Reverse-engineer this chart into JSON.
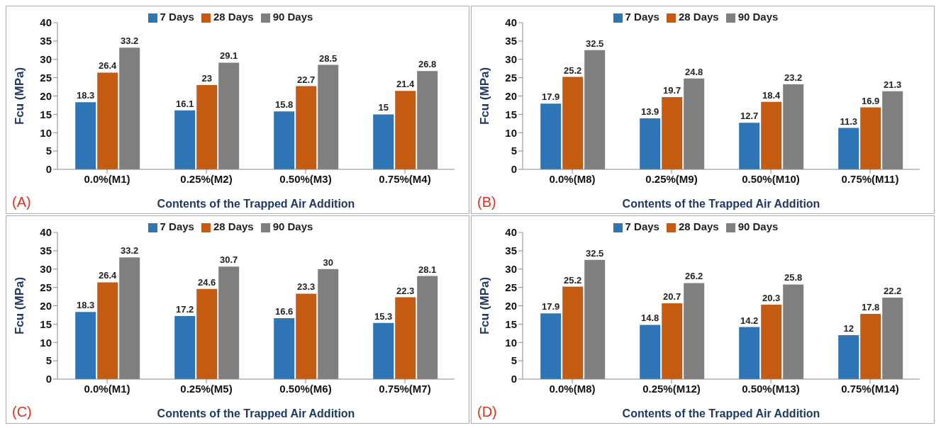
{
  "chart_data": [
    {
      "type": "bar",
      "categories": [
        "0.0%(M1)",
        "0.25%(M2)",
        "0.50%(M3)",
        "0.75%(M4)"
      ],
      "xlabel": "Contents of the Trapped Air Addition",
      "ylabel": "Fcu  (MPa)",
      "ylim": [
        0,
        40
      ],
      "yticks": [
        0,
        5,
        10,
        15,
        20,
        25,
        30,
        35,
        40
      ],
      "legend": "top",
      "data_labels": true,
      "annotations": [
        "(A)"
      ],
      "series": [
        {
          "name": "7 Days",
          "color": "#2e75b6",
          "values": [
            18.3,
            16.1,
            15.8,
            15
          ]
        },
        {
          "name": "28 Days",
          "color": "#c55a11",
          "values": [
            26.4,
            23,
            22.7,
            21.4
          ]
        },
        {
          "name": "90 Days",
          "color": "#7f7f7f",
          "values": [
            33.2,
            29.1,
            28.5,
            26.8
          ]
        }
      ]
    },
    {
      "type": "bar",
      "categories": [
        "0.0%(M8)",
        "0.25%(M9)",
        "0.50%(M10)",
        "0.75%(M11)"
      ],
      "xlabel": "Contents of the Trapped Air Addition",
      "ylabel": "Fcu  (MPa)",
      "ylim": [
        0,
        40
      ],
      "yticks": [
        0,
        5,
        10,
        15,
        20,
        25,
        30,
        35,
        40
      ],
      "legend": "top",
      "data_labels": true,
      "annotations": [
        "(B)"
      ],
      "series": [
        {
          "name": "7 Days",
          "color": "#2e75b6",
          "values": [
            17.9,
            13.9,
            12.7,
            11.3
          ]
        },
        {
          "name": "28 Days",
          "color": "#c55a11",
          "values": [
            25.2,
            19.7,
            18.4,
            16.9
          ]
        },
        {
          "name": "90 Days",
          "color": "#7f7f7f",
          "values": [
            32.5,
            24.8,
            23.2,
            21.3
          ]
        }
      ]
    },
    {
      "type": "bar",
      "categories": [
        "0.0%(M1)",
        "0.25%(M5)",
        "0.50%(M6)",
        "0.75%(M7)"
      ],
      "xlabel": "Contents of the Trapped Air Addition",
      "ylabel": "Fcu  (MPa)",
      "ylim": [
        0,
        40
      ],
      "yticks": [
        0,
        5,
        10,
        15,
        20,
        25,
        30,
        35,
        40
      ],
      "legend": "top",
      "data_labels": true,
      "annotations": [
        "(C)"
      ],
      "series": [
        {
          "name": "7 Days",
          "color": "#2e75b6",
          "values": [
            18.3,
            17.2,
            16.6,
            15.3
          ]
        },
        {
          "name": "28 Days",
          "color": "#c55a11",
          "values": [
            26.4,
            24.6,
            23.3,
            22.3
          ]
        },
        {
          "name": "90 Days",
          "color": "#7f7f7f",
          "values": [
            33.2,
            30.7,
            30,
            28.1
          ]
        }
      ]
    },
    {
      "type": "bar",
      "categories": [
        "0.0%(M8)",
        "0.25%(M12)",
        "0.50%(M13)",
        "0.75%(M14)"
      ],
      "xlabel": "Contents of the Trapped Air Addition",
      "ylabel": "Fcu  (MPa)",
      "ylim": [
        0,
        40
      ],
      "yticks": [
        0,
        5,
        10,
        15,
        20,
        25,
        30,
        35,
        40
      ],
      "legend": "top",
      "data_labels": true,
      "annotations": [
        "(D)"
      ],
      "series": [
        {
          "name": "7 Days",
          "color": "#2e75b6",
          "values": [
            17.9,
            14.8,
            14.2,
            12
          ]
        },
        {
          "name": "28 Days",
          "color": "#c55a11",
          "values": [
            25.2,
            20.7,
            20.3,
            17.8
          ]
        },
        {
          "name": "90 Days",
          "color": "#7f7f7f",
          "values": [
            32.5,
            26.2,
            25.8,
            22.2
          ]
        }
      ]
    }
  ]
}
